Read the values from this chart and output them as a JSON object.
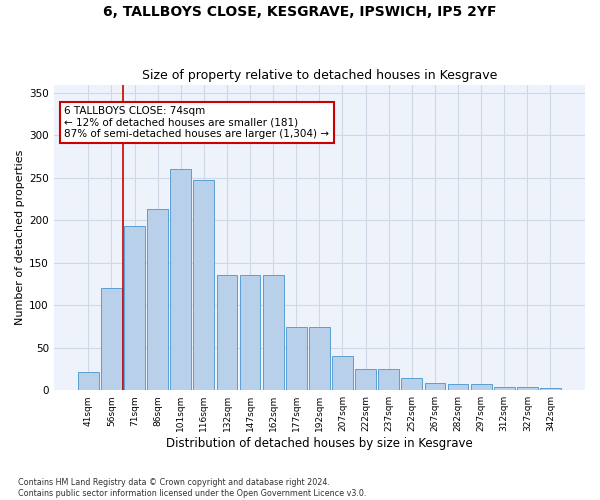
{
  "title": "6, TALLBOYS CLOSE, KESGRAVE, IPSWICH, IP5 2YF",
  "subtitle": "Size of property relative to detached houses in Kesgrave",
  "xlabel": "Distribution of detached houses by size in Kesgrave",
  "ylabel": "Number of detached properties",
  "categories": [
    "41sqm",
    "56sqm",
    "71sqm",
    "86sqm",
    "101sqm",
    "116sqm",
    "132sqm",
    "147sqm",
    "162sqm",
    "177sqm",
    "192sqm",
    "207sqm",
    "222sqm",
    "237sqm",
    "252sqm",
    "267sqm",
    "282sqm",
    "297sqm",
    "312sqm",
    "327sqm",
    "342sqm"
  ],
  "values": [
    22,
    120,
    193,
    213,
    261,
    247,
    136,
    136,
    136,
    75,
    75,
    40,
    25,
    25,
    14,
    8,
    7,
    7,
    4,
    4,
    3
  ],
  "bar_color": "#b8d0ea",
  "bar_edge_color": "#5a9fd4",
  "annotation_text": "6 TALLBOYS CLOSE: 74sqm\n← 12% of detached houses are smaller (181)\n87% of semi-detached houses are larger (1,304) →",
  "annotation_box_color": "#ffffff",
  "annotation_box_edge_color": "#cc0000",
  "vline_color": "#cc0000",
  "grid_color": "#d0d8e8",
  "background_color": "#eef2fa",
  "footer": "Contains HM Land Registry data © Crown copyright and database right 2024.\nContains public sector information licensed under the Open Government Licence v3.0.",
  "ylim": [
    0,
    360
  ],
  "yticks": [
    0,
    50,
    100,
    150,
    200,
    250,
    300,
    350
  ]
}
